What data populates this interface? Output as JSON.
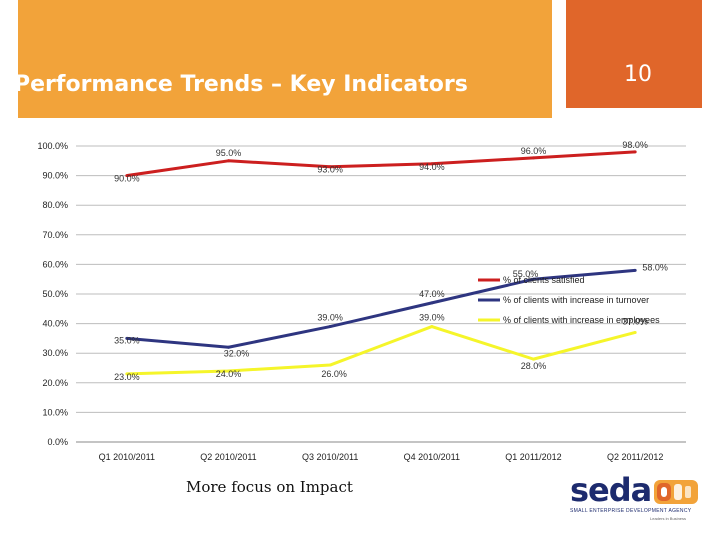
{
  "slide": {
    "title": "Performance Trends – Key Indicators",
    "page_number": "10",
    "footer_text": "More focus on Impact"
  },
  "logo": {
    "word": "seda",
    "subtitle": "SMALL ENTERPRISE DEVELOPMENT AGENCY",
    "tagline": "Leaders in Business"
  },
  "colors": {
    "title_bar": "#f2a33a",
    "number_box": "#e0662a",
    "satisfied": "#cc1f1f",
    "turnover": "#2e3580",
    "employees": "#f5f52a"
  },
  "chart_data": {
    "type": "line",
    "categories": [
      "Q1 2010/2011",
      "Q2 2010/2011",
      "Q3 2010/2011",
      "Q4 2010/2011",
      "Q1 2011/2012",
      "Q2 2011/2012"
    ],
    "y_ticks": [
      "0.0%",
      "10.0%",
      "20.0%",
      "30.0%",
      "40.0%",
      "50.0%",
      "60.0%",
      "70.0%",
      "80.0%",
      "90.0%",
      "100.0%"
    ],
    "ylim": [
      0,
      100
    ],
    "legend_position": "right",
    "series": [
      {
        "name": "% of clients satisfied",
        "values": [
          90,
          95,
          93,
          94,
          96,
          98
        ],
        "labels": [
          "90.0%",
          "95.0%",
          "93.0%",
          "94.0%",
          "96.0%",
          "98.0%"
        ]
      },
      {
        "name": "% of clients with increase in turnover",
        "values": [
          35,
          32,
          39,
          47,
          55,
          58
        ],
        "labels": [
          "35.0%",
          "32.0%",
          "39.0%",
          "47.0%",
          "55.0%",
          "58.0%"
        ]
      },
      {
        "name": "% of clients with increase in employees",
        "values": [
          23,
          24,
          26,
          39,
          28,
          37
        ],
        "labels": [
          "23.0%",
          "24.0%",
          "26.0%",
          "39.0%",
          "28.0%",
          "37.0%"
        ]
      }
    ]
  }
}
